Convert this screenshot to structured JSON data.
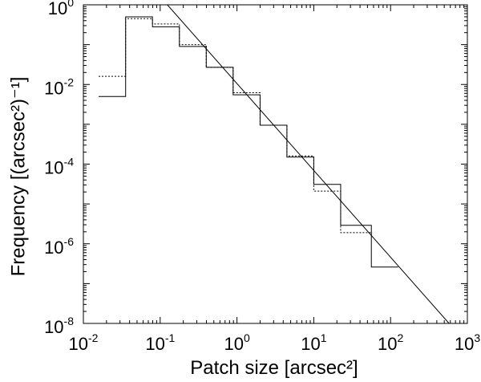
{
  "chart_data": {
    "type": "line",
    "xlabel": "Patch size [arcsec²]",
    "ylabel": "Frequency [(arcsec²)⁻¹]",
    "xscale": "log",
    "yscale": "log",
    "xlim": [
      0.01,
      1000
    ],
    "ylim": [
      1e-08,
      1
    ],
    "x_ticks": [
      {
        "base": "10",
        "exp": "-2"
      },
      {
        "base": "10",
        "exp": "-1"
      },
      {
        "base": "10",
        "exp": "0"
      },
      {
        "base": "10",
        "exp": "1"
      },
      {
        "base": "10",
        "exp": "2"
      },
      {
        "base": "10",
        "exp": "3"
      }
    ],
    "y_ticks": [
      {
        "base": "10",
        "exp": "-8"
      },
      {
        "base": "10",
        "exp": "-6"
      },
      {
        "base": "10",
        "exp": "-4"
      },
      {
        "base": "10",
        "exp": "-2"
      },
      {
        "base": "10",
        "exp": "0"
      }
    ],
    "grid": false,
    "series": [
      {
        "style": "solid-step",
        "bin_edges": [
          0.0158,
          0.0355,
          0.0794,
          0.178,
          0.398,
          0.891,
          2.0,
          4.47,
          10.0,
          22.4,
          56.2
        ],
        "values": [
          0.005,
          0.5,
          0.28,
          0.09,
          0.027,
          0.0055,
          0.00095,
          0.00015,
          3.1e-05,
          2.9e-06,
          2.6e-07
        ],
        "last_edge": 126
      },
      {
        "style": "dotted-step",
        "bin_edges": [
          0.0158,
          0.0355,
          0.0794,
          0.178,
          0.398,
          0.891,
          2.0,
          4.47,
          10.0,
          22.4
        ],
        "values": [
          0.016,
          0.45,
          0.33,
          0.1,
          0.027,
          0.0062,
          0.00095,
          0.00016,
          2.1e-05,
          1.9e-06
        ],
        "last_edge": 56.2
      },
      {
        "style": "fit-line",
        "x": [
          0.124,
          578
        ],
        "y": [
          1,
          1e-08
        ]
      }
    ]
  }
}
